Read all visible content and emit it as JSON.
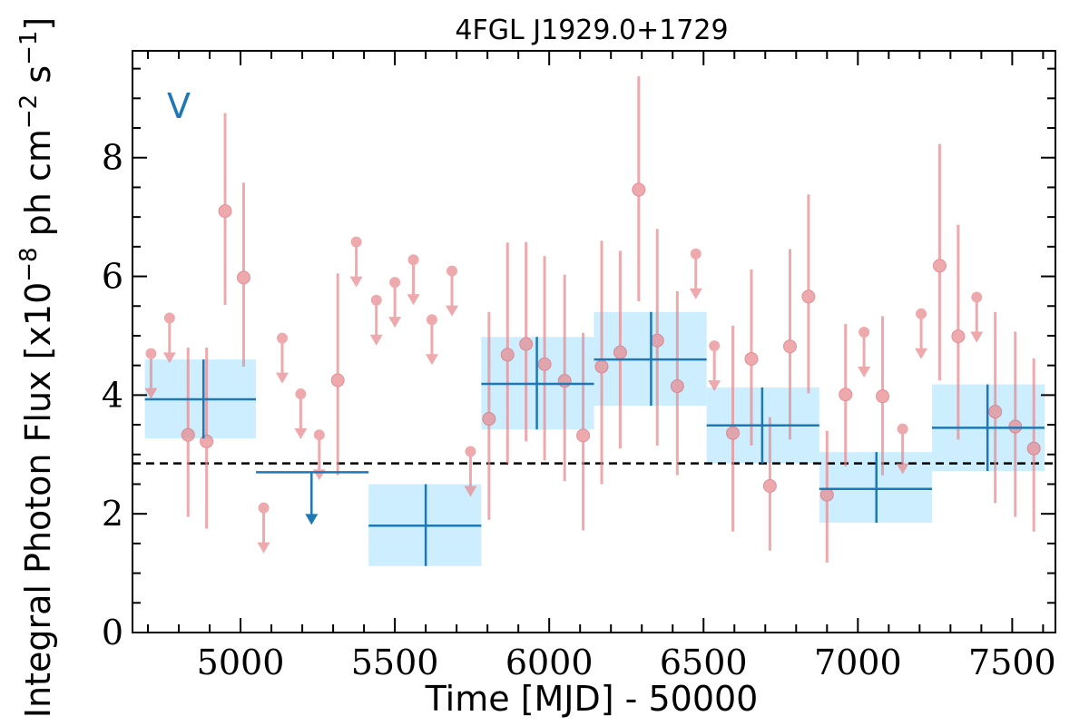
{
  "chart_data": {
    "type": "scatter",
    "title": "4FGL J1929.0+1729",
    "xlabel": "Time [MJD] - 50000",
    "ylabel": "Integral Photon Flux [x10",
    "ylabel_exp1": "−8",
    "ylabel_mid": " ph cm",
    "ylabel_exp2": "−2",
    "ylabel_end": " s",
    "ylabel_exp3": "−1",
    "ylabel_close": "]",
    "variability_label": "V",
    "xlim": [
      4650,
      7640
    ],
    "ylim": [
      0,
      9.8
    ],
    "x_ticks": [
      5000,
      5500,
      6000,
      6500,
      7000,
      7500
    ],
    "y_ticks": [
      0,
      2,
      4,
      6,
      8
    ],
    "average_flux": 2.85,
    "colors": {
      "fine": "#e8868a",
      "coarse_line": "#1f77b4",
      "coarse_box": "#cdeefe"
    },
    "coarse_bins": [
      {
        "x0": 4690,
        "x1": 5050,
        "x": 4880,
        "y": 3.93,
        "ylo": 3.27,
        "yhi": 4.6
      },
      {
        "x0": 5050,
        "x1": 5415,
        "x": 5230,
        "y": 2.7,
        "upper_limit": true
      },
      {
        "x0": 5415,
        "x1": 5780,
        "x": 5600,
        "y": 1.8,
        "ylo": 1.12,
        "yhi": 2.5
      },
      {
        "x0": 5780,
        "x1": 6145,
        "x": 5960,
        "y": 4.19,
        "ylo": 3.42,
        "yhi": 4.98
      },
      {
        "x0": 6145,
        "x1": 6510,
        "x": 6330,
        "y": 4.6,
        "ylo": 3.82,
        "yhi": 5.4
      },
      {
        "x0": 6510,
        "x1": 6875,
        "x": 6690,
        "y": 3.49,
        "ylo": 2.85,
        "yhi": 4.13
      },
      {
        "x0": 6875,
        "x1": 7240,
        "x": 7060,
        "y": 2.42,
        "ylo": 1.85,
        "yhi": 3.04
      },
      {
        "x0": 7240,
        "x1": 7605,
        "x": 7420,
        "y": 3.45,
        "ylo": 2.72,
        "yhi": 4.18
      }
    ],
    "fine_points": [
      {
        "x": 4710,
        "y": 4.7,
        "ul": true
      },
      {
        "x": 4770,
        "y": 5.3,
        "ul": true
      },
      {
        "x": 4830,
        "y": 3.33,
        "ylo": 1.95,
        "yhi": 4.8
      },
      {
        "x": 4890,
        "y": 3.22,
        "ylo": 1.75,
        "yhi": 4.8
      },
      {
        "x": 4950,
        "y": 7.1,
        "ylo": 5.52,
        "yhi": 8.75
      },
      {
        "x": 5010,
        "y": 5.98,
        "ylo": 4.48,
        "yhi": 7.58
      },
      {
        "x": 5075,
        "y": 2.1,
        "ul": true
      },
      {
        "x": 5135,
        "y": 4.96,
        "ul": true
      },
      {
        "x": 5195,
        "y": 4.02,
        "ul": true
      },
      {
        "x": 5255,
        "y": 3.33,
        "ul": true
      },
      {
        "x": 5315,
        "y": 4.25,
        "ylo": 2.65,
        "yhi": 6.05
      },
      {
        "x": 5375,
        "y": 6.58,
        "ul": true
      },
      {
        "x": 5440,
        "y": 5.6,
        "ul": true
      },
      {
        "x": 5500,
        "y": 5.9,
        "ul": true
      },
      {
        "x": 5560,
        "y": 6.28,
        "ul": true
      },
      {
        "x": 5620,
        "y": 5.27,
        "ul": true
      },
      {
        "x": 5685,
        "y": 6.09,
        "ul": true
      },
      {
        "x": 5745,
        "y": 3.05,
        "ul": true
      },
      {
        "x": 5805,
        "y": 3.6,
        "ylo": 1.9,
        "yhi": 5.4
      },
      {
        "x": 5865,
        "y": 4.68,
        "ylo": 2.85,
        "yhi": 6.57
      },
      {
        "x": 5925,
        "y": 4.86,
        "ylo": 3.22,
        "yhi": 6.58
      },
      {
        "x": 5985,
        "y": 4.52,
        "ylo": 2.9,
        "yhi": 6.34
      },
      {
        "x": 6050,
        "y": 4.24,
        "ylo": 2.55,
        "yhi": 6.03
      },
      {
        "x": 6110,
        "y": 3.32,
        "ylo": 1.72,
        "yhi": 5.05
      },
      {
        "x": 6170,
        "y": 4.48,
        "ylo": 2.5,
        "yhi": 6.6
      },
      {
        "x": 6230,
        "y": 4.72,
        "ylo": 3.1,
        "yhi": 6.43
      },
      {
        "x": 6290,
        "y": 7.46,
        "ylo": 5.58,
        "yhi": 9.37
      },
      {
        "x": 6350,
        "y": 4.92,
        "ylo": 3.15,
        "yhi": 6.8
      },
      {
        "x": 6415,
        "y": 4.15,
        "ylo": 2.65,
        "yhi": 5.75
      },
      {
        "x": 6475,
        "y": 6.38,
        "ul": true
      },
      {
        "x": 6535,
        "y": 4.83,
        "ul": true
      },
      {
        "x": 6595,
        "y": 3.36,
        "ylo": 1.7,
        "yhi": 5.17
      },
      {
        "x": 6655,
        "y": 4.61,
        "ylo": 3.15,
        "yhi": 6.12
      },
      {
        "x": 6715,
        "y": 2.47,
        "ylo": 1.38,
        "yhi": 3.63
      },
      {
        "x": 6780,
        "y": 4.82,
        "ylo": 3.25,
        "yhi": 6.46
      },
      {
        "x": 6840,
        "y": 5.66,
        "ylo": 4.03,
        "yhi": 7.38
      },
      {
        "x": 6900,
        "y": 2.32,
        "ylo": 1.18,
        "yhi": 3.4
      },
      {
        "x": 6960,
        "y": 4.01,
        "ylo": 2.8,
        "yhi": 5.2
      },
      {
        "x": 7020,
        "y": 5.06,
        "ul": true
      },
      {
        "x": 7080,
        "y": 3.98,
        "ylo": 2.65,
        "yhi": 5.33
      },
      {
        "x": 7145,
        "y": 3.43,
        "ul": true
      },
      {
        "x": 7205,
        "y": 5.37,
        "ul": true
      },
      {
        "x": 7265,
        "y": 6.18,
        "ylo": 4.25,
        "yhi": 8.23
      },
      {
        "x": 7325,
        "y": 4.99,
        "ylo": 3.25,
        "yhi": 6.87
      },
      {
        "x": 7385,
        "y": 5.65,
        "ul": true
      },
      {
        "x": 7445,
        "y": 3.72,
        "ylo": 2.18,
        "yhi": 5.4
      },
      {
        "x": 7510,
        "y": 3.47,
        "ylo": 1.95,
        "yhi": 5.07
      },
      {
        "x": 7570,
        "y": 3.1,
        "ylo": 1.7,
        "yhi": 4.62
      }
    ]
  }
}
